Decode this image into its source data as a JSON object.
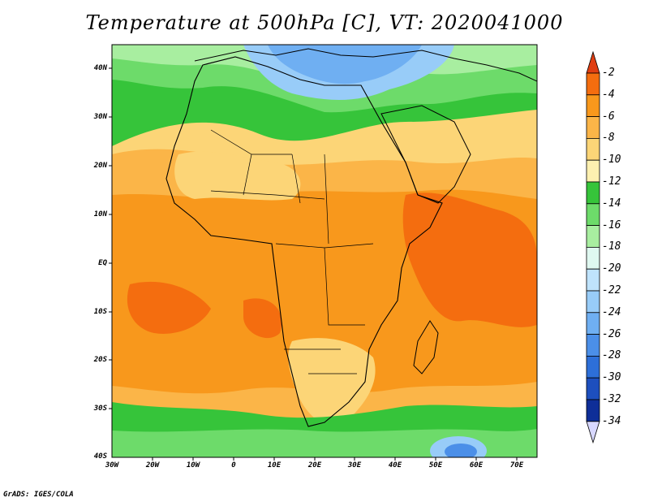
{
  "title": "Temperature at 500hPa [C], VT: 2020041000",
  "footer": "GrADS: IGES/COLA",
  "lat_labels": [
    "40N",
    "30N",
    "20N",
    "10N",
    "EQ",
    "10S",
    "20S",
    "30S",
    "40S"
  ],
  "lon_labels": [
    "30W",
    "20W",
    "10W",
    "0",
    "10E",
    "20E",
    "30E",
    "40E",
    "50E",
    "60E",
    "70E"
  ],
  "colorbar": {
    "levels": [
      "-2",
      "-4",
      "-6",
      "-8",
      "-10",
      "-12",
      "-14",
      "-16",
      "-18",
      "-20",
      "-22",
      "-24",
      "-26",
      "-28",
      "-30",
      "-32",
      "-34"
    ],
    "colors": [
      "#e03e12",
      "#f46d0f",
      "#f8981c",
      "#fbb548",
      "#fcd577",
      "#fdf0b0",
      "#36c43a",
      "#6ddb6a",
      "#a8eea0",
      "#dff8f0",
      "#bfe3fc",
      "#98ccf8",
      "#6faff2",
      "#4b8fe8",
      "#2d6fd8",
      "#1d4fbe",
      "#0e2e98",
      "#081a6e"
    ]
  }
}
